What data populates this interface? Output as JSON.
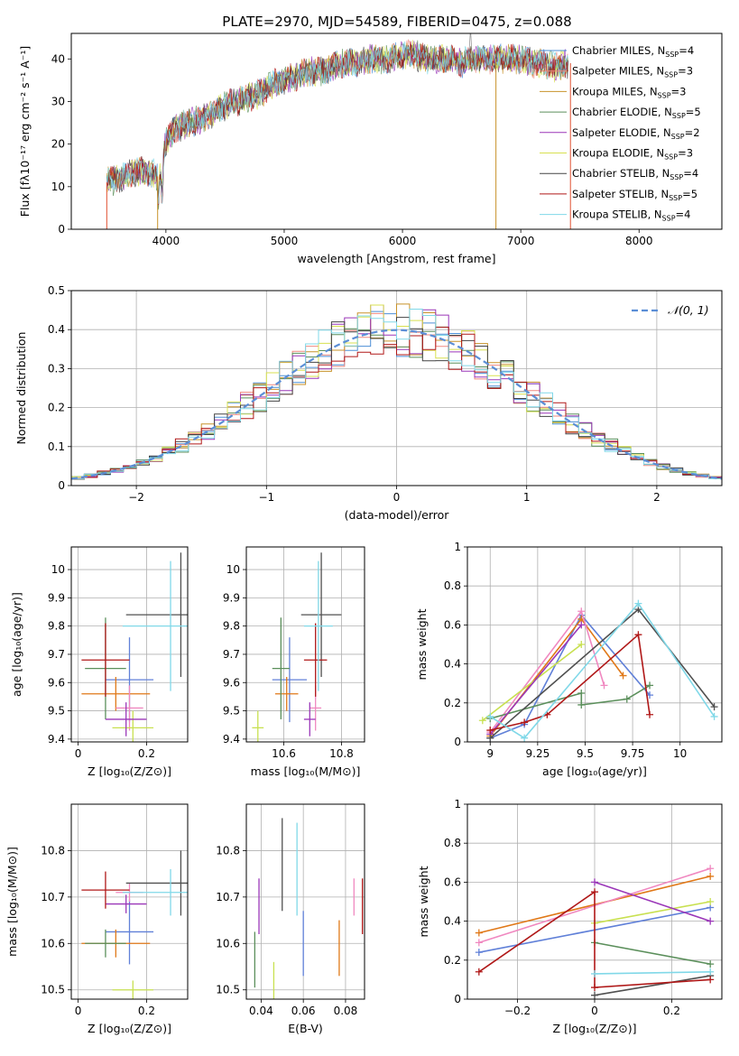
{
  "figure_title": "PLATE=2970, MJD=54589, FIBERID=0475, z=0.088",
  "chart_data": [
    {
      "id": "spectrum",
      "type": "line",
      "xlabel": "wavelength [Angstrom, rest frame]",
      "ylabel": "Flux [fλ10⁻¹⁷ erg cm⁻² s⁻¹ A⁻¹]",
      "xlim": [
        3200,
        8700
      ],
      "ylim": [
        0,
        46
      ],
      "xticks": [
        4000,
        5000,
        6000,
        7000,
        8000
      ],
      "yticks": [
        0,
        10,
        20,
        30,
        40
      ],
      "grid": false,
      "legend_position": "top-right",
      "curve": {
        "wavelength": [
          3500,
          3600,
          3700,
          3800,
          3900,
          3950,
          4000,
          4100,
          4200,
          4300,
          4400,
          4500,
          4600,
          4700,
          4800,
          4900,
          5000,
          5100,
          5200,
          5300,
          5400,
          5500,
          5600,
          5700,
          5800,
          5900,
          6000,
          6100,
          6200,
          6300,
          6400,
          6500,
          6600,
          6700,
          6800,
          6900,
          7000,
          7100,
          7200,
          7300,
          7400
        ],
        "flux": [
          11,
          12,
          13,
          14,
          13,
          12,
          21,
          24,
          25,
          26,
          27,
          29,
          30,
          31,
          32,
          34,
          35,
          36,
          37,
          37,
          38,
          39,
          39,
          40,
          40,
          40,
          41,
          41,
          40,
          40,
          40,
          39,
          40,
          40,
          40,
          40,
          40,
          39,
          39,
          38,
          39
        ]
      },
      "series": [
        {
          "name": "Chabrier MILES, N<sub>SSP</sub>=4",
          "color": "#4c8fd6"
        },
        {
          "name": "Salpeter MILES, N<sub>SSP</sub>=3",
          "color": "#f08a80"
        },
        {
          "name": "Kroupa MILES, N<sub>SSP</sub>=3",
          "color": "#c8922a"
        },
        {
          "name": "Chabrier ELODIE, N<sub>SSP</sub>=5",
          "color": "#5b8f5b"
        },
        {
          "name": "Salpeter ELODIE, N<sub>SSP</sub>=2",
          "color": "#9a36b8"
        },
        {
          "name": "Kroupa ELODIE, N<sub>SSP</sub>=3",
          "color": "#d8e050"
        },
        {
          "name": "Chabrier STELIB, N<sub>SSP</sub>=4",
          "color": "#444444"
        },
        {
          "name": "Salpeter STELIB, N<sub>SSP</sub>=5",
          "color": "#b01818"
        },
        {
          "name": "Kroupa STELIB, N<sub>SSP</sub>=4",
          "color": "#80d8e8"
        }
      ]
    },
    {
      "id": "residuals",
      "type": "bar",
      "xlabel": "(data-model)/error",
      "ylabel": "Normed distribution",
      "xlim": [
        -2.5,
        2.5
      ],
      "ylim": [
        0,
        0.5
      ],
      "xticks": [
        -2,
        -1,
        0,
        1,
        2
      ],
      "yticks": [
        0.0,
        0.1,
        0.2,
        0.3,
        0.4,
        0.5
      ],
      "grid": true,
      "legend_position": "top-right",
      "reference_curve": {
        "name": "𝒩(0, 1)",
        "color": "#5b8ed6",
        "mean": 0,
        "sigma": 1
      },
      "histogram_colors": [
        "#4c8fd6",
        "#f08a80",
        "#c8922a",
        "#5b8f5b",
        "#9a36b8",
        "#d8e050",
        "#444444",
        "#b01818",
        "#80d8e8"
      ]
    },
    {
      "id": "age-vs-Z",
      "type": "scatter",
      "xlabel": "Z [log₁₀(Z/Z⊙)]",
      "ylabel": "age  [log₁₀(age/yr)]",
      "xlim": [
        -0.02,
        0.32
      ],
      "ylim": [
        9.39,
        10.08
      ],
      "xticks": [
        0.0,
        0.2
      ],
      "yticks": [
        9.4,
        9.5,
        9.6,
        9.7,
        9.8,
        9.9,
        10.0
      ],
      "grid": true,
      "points": [
        {
          "x": 0.15,
          "y": 9.61,
          "xerr": 0.07,
          "yerr": 0.15,
          "color": "#6080d8"
        },
        {
          "x": 0.11,
          "y": 9.56,
          "xerr": 0.1,
          "yerr": 0.06,
          "color": "#e07818"
        },
        {
          "x": 0.15,
          "y": 9.51,
          "xerr": 0.04,
          "yerr": 0.08,
          "color": "#f088c0"
        },
        {
          "x": 0.16,
          "y": 9.44,
          "xerr": 0.06,
          "yerr": 0.06,
          "color": "#c8e050"
        },
        {
          "x": 0.08,
          "y": 9.65,
          "xerr": 0.06,
          "yerr": 0.18,
          "color": "#5b8f5b"
        },
        {
          "x": 0.14,
          "y": 9.47,
          "xerr": 0.06,
          "yerr": 0.06,
          "color": "#9a36b8"
        },
        {
          "x": 0.3,
          "y": 9.84,
          "xerr": 0.16,
          "yerr": 0.22,
          "color": "#505050"
        },
        {
          "x": 0.08,
          "y": 9.68,
          "xerr": 0.07,
          "yerr": 0.13,
          "color": "#b01818"
        },
        {
          "x": 0.27,
          "y": 9.8,
          "xerr": 0.14,
          "yerr": 0.23,
          "color": "#80d8e8"
        }
      ]
    },
    {
      "id": "age-vs-mass",
      "type": "scatter",
      "xlabel": "mass [log₁₀(M/M⊙)]",
      "ylabel": "",
      "xlim": [
        10.47,
        10.88
      ],
      "ylim": [
        9.39,
        10.08
      ],
      "xticks": [
        10.6,
        10.8
      ],
      "yticks": [
        9.4,
        9.5,
        9.6,
        9.7,
        9.8,
        9.9,
        10.0
      ],
      "grid": true,
      "points": [
        {
          "x": 10.62,
          "y": 9.61,
          "xerr": 0.06,
          "yerr": 0.15,
          "color": "#6080d8"
        },
        {
          "x": 10.61,
          "y": 9.56,
          "xerr": 0.04,
          "yerr": 0.06,
          "color": "#e07818"
        },
        {
          "x": 10.71,
          "y": 9.51,
          "xerr": 0.02,
          "yerr": 0.08,
          "color": "#f088c0"
        },
        {
          "x": 10.51,
          "y": 9.44,
          "xerr": 0.02,
          "yerr": 0.06,
          "color": "#c8e050"
        },
        {
          "x": 10.59,
          "y": 9.65,
          "xerr": 0.03,
          "yerr": 0.18,
          "color": "#5b8f5b"
        },
        {
          "x": 10.69,
          "y": 9.47,
          "xerr": 0.02,
          "yerr": 0.06,
          "color": "#9a36b8"
        },
        {
          "x": 10.73,
          "y": 9.84,
          "xerr": 0.07,
          "yerr": 0.22,
          "color": "#505050"
        },
        {
          "x": 10.71,
          "y": 9.68,
          "xerr": 0.04,
          "yerr": 0.13,
          "color": "#b01818"
        },
        {
          "x": 10.72,
          "y": 9.8,
          "xerr": 0.05,
          "yerr": 0.23,
          "color": "#80d8e8"
        }
      ]
    },
    {
      "id": "weight-vs-age",
      "type": "line",
      "xlabel": "age  [log₁₀(age/yr)]",
      "ylabel": "mass weight",
      "xlim": [
        8.88,
        10.22
      ],
      "ylim": [
        0,
        1.0
      ],
      "xticks": [
        9.0,
        9.25,
        9.5,
        9.75,
        10.0
      ],
      "yticks": [
        0.0,
        0.2,
        0.4,
        0.6,
        0.8,
        1.0
      ],
      "grid": true,
      "series": [
        {
          "color": "#6080d8",
          "x": [
            9.0,
            9.18,
            9.48,
            9.84
          ],
          "y": [
            0.02,
            0.09,
            0.65,
            0.24
          ]
        },
        {
          "color": "#e07818",
          "x": [
            9.0,
            9.48,
            9.7
          ],
          "y": [
            0.03,
            0.63,
            0.34
          ]
        },
        {
          "color": "#f088c0",
          "x": [
            9.0,
            9.48,
            9.6
          ],
          "y": [
            0.05,
            0.67,
            0.29
          ]
        },
        {
          "color": "#c8e050",
          "x": [
            8.96,
            9.48
          ],
          "y": [
            0.11,
            0.5
          ]
        },
        {
          "color": "#5b8f5b",
          "x": [
            9.0,
            9.48,
            9.48,
            9.72,
            9.84
          ],
          "y": [
            0.12,
            0.25,
            0.19,
            0.22,
            0.29
          ]
        },
        {
          "color": "#9a36b8",
          "x": [
            9.0,
            9.48
          ],
          "y": [
            0.04,
            0.6
          ]
        },
        {
          "color": "#505050",
          "x": [
            9.0,
            9.78,
            10.18
          ],
          "y": [
            0.02,
            0.68,
            0.18
          ]
        },
        {
          "color": "#b01818",
          "x": [
            9.0,
            9.18,
            9.3,
            9.78,
            9.84
          ],
          "y": [
            0.06,
            0.1,
            0.14,
            0.55,
            0.14
          ]
        },
        {
          "color": "#80d8e8",
          "x": [
            9.0,
            9.18,
            9.78,
            10.18
          ],
          "y": [
            0.13,
            0.02,
            0.71,
            0.13
          ]
        }
      ]
    },
    {
      "id": "mass-vs-Z",
      "type": "scatter",
      "xlabel": "Z [log₁₀(Z/Z⊙)]",
      "ylabel": "mass [log₁₀(M/M⊙)]",
      "xlim": [
        -0.02,
        0.32
      ],
      "ylim": [
        10.48,
        10.9
      ],
      "xticks": [
        0.0,
        0.2
      ],
      "yticks": [
        10.5,
        10.6,
        10.7,
        10.8
      ],
      "grid": true,
      "points": [
        {
          "x": 0.15,
          "y": 10.625,
          "xerr": 0.07,
          "yerr": 0.07,
          "color": "#6080d8"
        },
        {
          "x": 0.11,
          "y": 10.6,
          "xerr": 0.1,
          "yerr": 0.03,
          "color": "#e07818"
        },
        {
          "x": 0.15,
          "y": 10.71,
          "xerr": 0.04,
          "yerr": 0.02,
          "color": "#f088c0"
        },
        {
          "x": 0.16,
          "y": 10.5,
          "xerr": 0.06,
          "yerr": 0.02,
          "color": "#c8e050"
        },
        {
          "x": 0.08,
          "y": 10.6,
          "xerr": 0.06,
          "yerr": 0.03,
          "color": "#5b8f5b"
        },
        {
          "x": 0.14,
          "y": 10.685,
          "xerr": 0.06,
          "yerr": 0.02,
          "color": "#9a36b8"
        },
        {
          "x": 0.3,
          "y": 10.73,
          "xerr": 0.16,
          "yerr": 0.07,
          "color": "#505050"
        },
        {
          "x": 0.08,
          "y": 10.715,
          "xerr": 0.07,
          "yerr": 0.04,
          "color": "#b01818"
        },
        {
          "x": 0.27,
          "y": 10.71,
          "xerr": 0.14,
          "yerr": 0.05,
          "color": "#80d8e8"
        }
      ]
    },
    {
      "id": "mass-vs-EBV",
      "type": "scatter",
      "xlabel": "E(B-V)",
      "ylabel": "",
      "xlim": [
        0.033,
        0.089
      ],
      "ylim": [
        10.48,
        10.9
      ],
      "xticks": [
        0.04,
        0.06,
        0.08
      ],
      "yticks": [
        10.5,
        10.6,
        10.7,
        10.8
      ],
      "grid": true,
      "points": [
        {
          "x": 0.037,
          "y": 10.565,
          "yerr": 0.06,
          "color": "#5b8f5b"
        },
        {
          "x": 0.039,
          "y": 10.68,
          "yerr": 0.06,
          "color": "#9a36b8"
        },
        {
          "x": 0.046,
          "y": 10.52,
          "yerr": 0.04,
          "color": "#c8e050"
        },
        {
          "x": 0.05,
          "y": 10.77,
          "yerr": 0.1,
          "color": "#505050"
        },
        {
          "x": 0.057,
          "y": 10.76,
          "yerr": 0.1,
          "color": "#80d8e8"
        },
        {
          "x": 0.06,
          "y": 10.6,
          "yerr": 0.07,
          "color": "#6080d8"
        },
        {
          "x": 0.077,
          "y": 10.59,
          "yerr": 0.06,
          "color": "#e07818"
        },
        {
          "x": 0.084,
          "y": 10.7,
          "yerr": 0.04,
          "color": "#f088c0"
        },
        {
          "x": 0.088,
          "y": 10.68,
          "yerr": 0.06,
          "color": "#b01818"
        }
      ]
    },
    {
      "id": "weight-vs-Z",
      "type": "line",
      "xlabel": "Z [log₁₀(Z/Z⊙)]",
      "ylabel": "mass weight",
      "xlim": [
        -0.33,
        0.33
      ],
      "ylim": [
        0,
        1.0
      ],
      "xticks": [
        -0.2,
        0.0,
        0.2
      ],
      "yticks": [
        0.0,
        0.2,
        0.4,
        0.6,
        0.8,
        1.0
      ],
      "grid": true,
      "series": [
        {
          "color": "#6080d8",
          "x": [
            -0.3,
            0.3
          ],
          "y": [
            0.24,
            0.47
          ]
        },
        {
          "color": "#e07818",
          "x": [
            -0.3,
            0.3
          ],
          "y": [
            0.34,
            0.63
          ]
        },
        {
          "color": "#f088c0",
          "x": [
            -0.3,
            0.3
          ],
          "y": [
            0.29,
            0.67
          ]
        },
        {
          "color": "#c8e050",
          "x": [
            0.0,
            0.3
          ],
          "y": [
            0.39,
            0.5
          ]
        },
        {
          "color": "#5b8f5b",
          "x": [
            0.0,
            0.3
          ],
          "y": [
            0.29,
            0.18
          ]
        },
        {
          "color": "#9a36b8",
          "x": [
            0.0,
            0.3
          ],
          "y": [
            0.6,
            0.4
          ]
        },
        {
          "color": "#505050",
          "x": [
            0.0,
            0.3
          ],
          "y": [
            0.02,
            0.12
          ]
        },
        {
          "color": "#b01818",
          "x": [
            -0.3,
            0.0,
            0.0,
            0.3
          ],
          "y": [
            0.14,
            0.55,
            0.06,
            0.1
          ]
        },
        {
          "color": "#80d8e8",
          "x": [
            0.0,
            0.3
          ],
          "y": [
            0.13,
            0.14
          ]
        }
      ]
    }
  ]
}
